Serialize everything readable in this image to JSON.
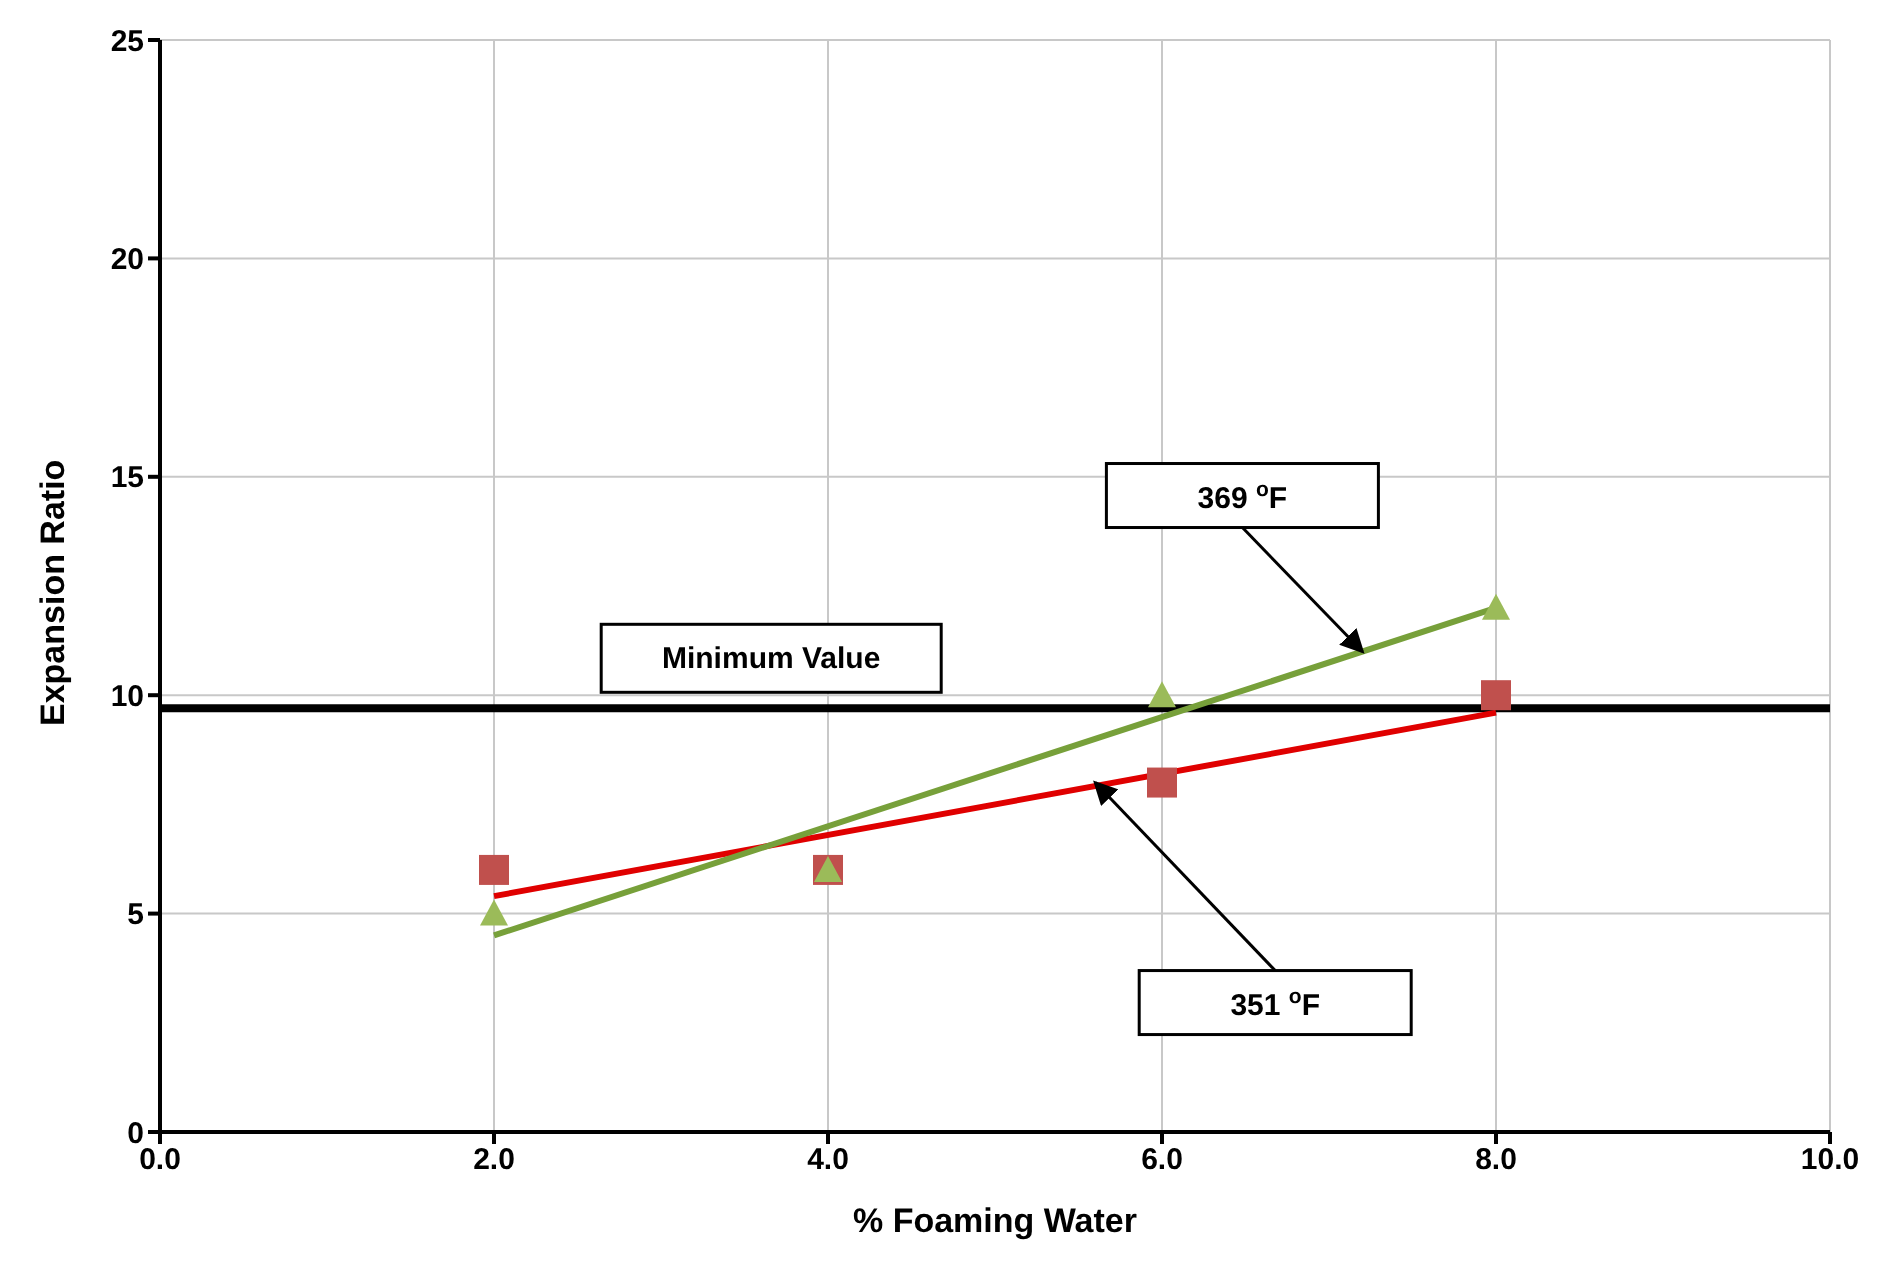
{
  "chart_data": {
    "type": "scatter",
    "xlabel": "% Foaming Water",
    "ylabel": "Expansion Ratio",
    "xlim": [
      0,
      10
    ],
    "ylim": [
      0,
      25
    ],
    "xticks": [
      {
        "value": 0,
        "label": "0.0"
      },
      {
        "value": 2,
        "label": "2.0"
      },
      {
        "value": 4,
        "label": "4.0"
      },
      {
        "value": 6,
        "label": "6.0"
      },
      {
        "value": 8,
        "label": "8.0"
      },
      {
        "value": 10,
        "label": "10.0"
      }
    ],
    "yticks": [
      0,
      5,
      10,
      15,
      20,
      25
    ],
    "grid": true,
    "legend": false,
    "series": [
      {
        "marker": "square",
        "color": "#c0504d",
        "x": [
          2,
          4,
          6,
          8
        ],
        "values": [
          6,
          6,
          8,
          10
        ]
      },
      {
        "marker": "triangle",
        "color": "#9bbb59",
        "x": [
          2,
          4,
          6,
          8
        ],
        "values": [
          5,
          6,
          10,
          12
        ]
      },
      {
        "type": "line",
        "marker": "none",
        "color": "#e00000",
        "x": [
          2,
          8
        ],
        "values": [
          5.4,
          9.6
        ]
      },
      {
        "type": "line",
        "marker": "none",
        "color": "#77a03a",
        "x": [
          2,
          8
        ],
        "values": [
          4.5,
          12
        ]
      }
    ],
    "ref_lines": [
      {
        "axis": "y",
        "value": 9.7,
        "label": "Minimum Value",
        "color": "#000000"
      }
    ],
    "annotations": [
      {
        "text": "369 $^{o}$F",
        "x": 7.2,
        "y": 11
      },
      {
        "text": "351 $^{o}$F",
        "x": 5.6,
        "y": 8
      }
    ]
  }
}
